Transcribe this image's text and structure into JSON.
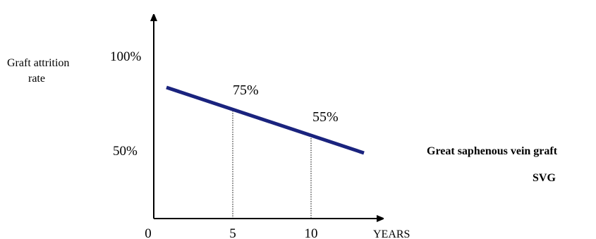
{
  "chart_data": {
    "type": "line",
    "ylabel_lines": [
      "Graft attrition",
      "rate"
    ],
    "xlabel": "YEARS",
    "x_ticks": [
      {
        "value": 0,
        "label": "0"
      },
      {
        "value": 5,
        "label": "5"
      },
      {
        "value": 10,
        "label": "10"
      }
    ],
    "y_ticks": [
      {
        "value": 100,
        "label": "100%"
      },
      {
        "value": 50,
        "label": "50%"
      }
    ],
    "xlim": [
      0,
      15
    ],
    "ylim": [
      20,
      120
    ],
    "series": [
      {
        "name": "Great saphenous vein graft",
        "abbreviation": "SVG",
        "color": "#1a237e",
        "x": [
          1,
          13.5
        ],
        "y": [
          84,
          44
        ]
      }
    ],
    "annotations": [
      {
        "label": "75%",
        "x": 5,
        "y": 70
      },
      {
        "label": "55%",
        "x": 10,
        "y": 54
      }
    ],
    "grid": false
  }
}
